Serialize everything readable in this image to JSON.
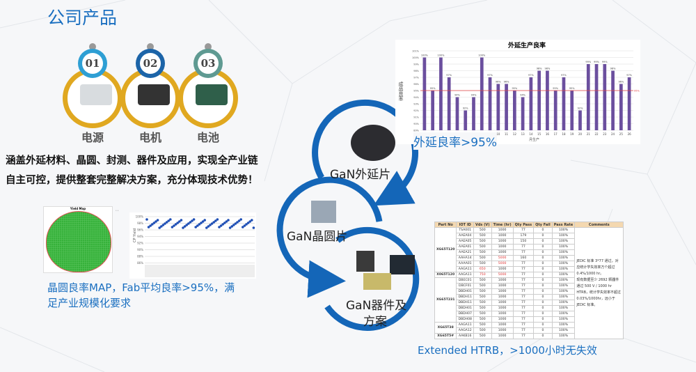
{
  "title": "公司产品",
  "products": [
    {
      "num": "01",
      "label": "电源",
      "color": "#2e9fd4"
    },
    {
      "num": "02",
      "label": "电机",
      "color": "#1c64a8"
    },
    {
      "num": "03",
      "label": "电池",
      "color": "#5f9a92"
    }
  ],
  "statement": [
    "涵盖外延材料、晶圆、封测、器件及应用，实现全产业链",
    "自主可控，提供整套完整解决方案，充分体现技术优势！"
  ],
  "cycle": {
    "step1": "GaN外延片",
    "step2": "GaN晶圆片",
    "step3_line1": "GaN器件及",
    "step3_line2": "方案"
  },
  "wafer": {
    "map_title": "Yield Map",
    "yaxis_label": "CP Yield",
    "yticks": [
      "100%",
      "98%",
      "96%",
      "94%",
      "92%",
      "90%",
      "88%",
      "86%"
    ],
    "caption_line1": "晶圆良率MAP，Fab平均良率>95%，满",
    "caption_line2": "足产业规模化要求"
  },
  "chart_data": {
    "type": "bar",
    "title": "外延生产良率",
    "ylabel": "成品良率",
    "xlabel": "月生产",
    "categories": [
      "1",
      "2",
      "3",
      "4",
      "5",
      "6",
      "7",
      "8",
      "9",
      "10",
      "11",
      "12",
      "13",
      "14",
      "15",
      "16",
      "17",
      "18",
      "19",
      "20",
      "21",
      "22",
      "23",
      "24",
      "25",
      "26"
    ],
    "values": [
      100,
      95,
      100,
      97,
      94,
      92,
      94,
      100,
      97,
      96,
      96,
      95,
      94,
      97,
      98,
      98,
      95,
      97,
      95,
      92,
      99,
      99,
      99,
      98,
      96,
      97
    ],
    "ylim": [
      89,
      101
    ],
    "yticks": [
      "101%",
      "100%",
      "99%",
      "98%",
      "97%",
      "96%",
      "95%",
      "94%",
      "93%",
      "92%",
      "91%",
      "90%",
      "89%"
    ],
    "reference_line": {
      "value": 95,
      "label": "95%",
      "color": "#e04040"
    },
    "bar_color": "#6b4f9e",
    "grid": true
  },
  "epi_caption": "外延良率>95%",
  "htrb": {
    "headers": [
      "Part No",
      "IOT ID",
      "Vds (V)",
      "Time (hr)",
      "Qty Pass",
      "Qty Fail",
      "Pass Rate",
      "Comments"
    ],
    "groups": [
      {
        "part": "XG65T120",
        "rows": [
          [
            "TSA001",
            "500",
            "1000",
            "77",
            "0",
            "100%"
          ],
          [
            "AAEA04",
            "500",
            "1000",
            "179",
            "0",
            "100%"
          ],
          [
            "AAEA05",
            "500",
            "1000",
            "150",
            "0",
            "100%"
          ],
          [
            "AAEA01",
            "500",
            "1000",
            "77",
            "0",
            "100%"
          ],
          [
            "AAEA21",
            "500",
            "1000",
            "77",
            "0",
            "100%"
          ],
          [
            "AAHA14",
            "500",
            "5000",
            "160",
            "0",
            "100%"
          ],
          [
            "AAAA01",
            "500",
            "5000",
            "77",
            "0",
            "100%"
          ],
          [
            "AAGA11",
            "650",
            "1000",
            "77",
            "0",
            "100%"
          ]
        ]
      },
      {
        "part": "X065T120",
        "rows": [
          [
            "AAGA11",
            "750",
            "5000",
            "77",
            "0",
            "100%"
          ]
        ]
      },
      {
        "part": "XG65T231",
        "rows": [
          [
            "DBEC01",
            "500",
            "1000",
            "77",
            "0",
            "100%"
          ],
          [
            "DBCF01",
            "500",
            "1000",
            "77",
            "0",
            "100%"
          ],
          [
            "DBDH01",
            "500",
            "1000",
            "77",
            "0",
            "100%"
          ],
          [
            "DBDH11",
            "500",
            "1000",
            "77",
            "0",
            "100%"
          ],
          [
            "DBDH11",
            "500",
            "1000",
            "77",
            "0",
            "100%"
          ],
          [
            "DBDH01",
            "500",
            "1000",
            "77",
            "0",
            "100%"
          ],
          [
            "DBDH07",
            "500",
            "1000",
            "77",
            "0",
            "100%"
          ],
          [
            "DBDH08",
            "500",
            "1000",
            "77",
            "0",
            "100%"
          ]
        ]
      },
      {
        "part": "XG65T38",
        "rows": [
          [
            "AAGA11",
            "500",
            "1000",
            "77",
            "0",
            "100%"
          ],
          [
            "AAGA12",
            "500",
            "1000",
            "77",
            "0",
            "100%"
          ]
        ]
      },
      {
        "part": "XG65T5#",
        "rows": [
          [
            "AAKB16",
            "500",
            "1000",
            "77",
            "0",
            "100%"
          ]
        ]
      }
    ],
    "comments": [
      "JEDIC 标准 3*77 通过，对应统计学失效率万个超过 0.4%/1000 hr。",
      "现有数据至少 2692 颗器件通过 500 V / 1000 hr HTRB，统计学失效率不超过 0.03%/1000hr，远小于 JEDIC 标准。"
    ],
    "caption": "Extended HTRB，>1000小时无失效"
  }
}
